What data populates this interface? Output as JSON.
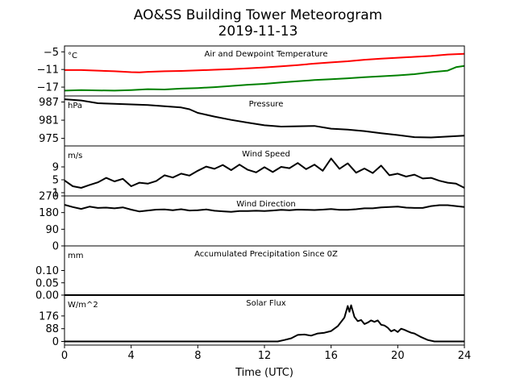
{
  "title_line1": "AO&SS Building Tower Meteorogram",
  "title_line2": "2019-11-13",
  "xlabel": "Time (UTC)",
  "x_ticks": [
    "0",
    "4",
    "8",
    "12",
    "16",
    "20",
    "24"
  ],
  "colors": {
    "temperature": "#ff0000",
    "dewpoint": "#008000",
    "default": "#000000"
  },
  "chart_data": [
    {
      "type": "line",
      "title": "Air and Dewpoint Temperature",
      "unit": "°C",
      "xlim": [
        0,
        24
      ],
      "ylim": [
        -20,
        -3
      ],
      "y_ticks": [
        {
          "v": -5,
          "label": "−5"
        },
        {
          "v": -11,
          "label": "−11"
        },
        {
          "v": -17,
          "label": "−17"
        }
      ],
      "series": [
        {
          "color": "#ff0000",
          "x": [
            0,
            1,
            2,
            3,
            4,
            4.5,
            5,
            6,
            7,
            8,
            9,
            10,
            11,
            12,
            13,
            14,
            15,
            16,
            17,
            18,
            19,
            20,
            21,
            22,
            23,
            24
          ],
          "y": [
            -11.2,
            -11.2,
            -11.4,
            -11.6,
            -11.9,
            -12.0,
            -11.8,
            -11.6,
            -11.5,
            -11.3,
            -11.1,
            -10.9,
            -10.6,
            -10.3,
            -9.9,
            -9.5,
            -9.0,
            -8.6,
            -8.2,
            -7.7,
            -7.3,
            -7.0,
            -6.7,
            -6.4,
            -5.9,
            -5.7
          ]
        },
        {
          "color": "#008000",
          "x": [
            0,
            1,
            2,
            3,
            4,
            5,
            6,
            7,
            8,
            9,
            10,
            11,
            12,
            13,
            14,
            15,
            16,
            17,
            18,
            19,
            20,
            21,
            22,
            23,
            23.5,
            24
          ],
          "y": [
            -18.2,
            -18.0,
            -18.1,
            -18.2,
            -18.0,
            -17.7,
            -17.8,
            -17.5,
            -17.3,
            -17.0,
            -16.6,
            -16.2,
            -15.9,
            -15.4,
            -15.0,
            -14.6,
            -14.3,
            -14.0,
            -13.6,
            -13.3,
            -13.0,
            -12.6,
            -11.9,
            -11.4,
            -10.2,
            -9.8
          ]
        }
      ]
    },
    {
      "type": "line",
      "title": "Pressure",
      "unit": "hPa",
      "xlim": [
        0,
        24
      ],
      "ylim": [
        972.5,
        989
      ],
      "y_ticks": [
        {
          "v": 987,
          "label": "987"
        },
        {
          "v": 981,
          "label": "981"
        },
        {
          "v": 975,
          "label": "975"
        }
      ],
      "series": [
        {
          "color": "#000000",
          "x": [
            0,
            1,
            2,
            3,
            4,
            5,
            6,
            7,
            7.5,
            8,
            9,
            10,
            11,
            12,
            13,
            14,
            15,
            16,
            17,
            18,
            19,
            20,
            21,
            22,
            23,
            24
          ],
          "y": [
            987.9,
            987.5,
            986.6,
            986.4,
            986.2,
            986.0,
            985.6,
            985.2,
            984.6,
            983.4,
            982.2,
            981.1,
            980.2,
            979.3,
            978.9,
            979.0,
            979.1,
            978.2,
            977.9,
            977.4,
            976.7,
            976.1,
            975.4,
            975.3,
            975.6,
            975.9
          ]
        }
      ]
    },
    {
      "type": "line",
      "title": "Wind Speed",
      "unit": "m/s",
      "xlim": [
        0,
        24
      ],
      "ylim": [
        0,
        15.5
      ],
      "y_ticks": [
        {
          "v": 9,
          "label": "9"
        },
        {
          "v": 5,
          "label": "5"
        },
        {
          "v": 1,
          "label": "1"
        }
      ],
      "series": [
        {
          "color": "#000000",
          "x": [
            0,
            0.5,
            1,
            1.5,
            2,
            2.5,
            3,
            3.5,
            4,
            4.5,
            5,
            5.5,
            6,
            6.5,
            7,
            7.5,
            8,
            8.5,
            9,
            9.5,
            10,
            10.5,
            11,
            11.5,
            12,
            12.5,
            13,
            13.5,
            14,
            14.5,
            15,
            15.5,
            16,
            16.5,
            17,
            17.5,
            18,
            18.5,
            19,
            19.5,
            20,
            20.5,
            21,
            21.5,
            22,
            22.5,
            23,
            23.5,
            24
          ],
          "y": [
            4.8,
            3.0,
            2.5,
            3.4,
            4.2,
            5.6,
            4.5,
            5.3,
            3.0,
            4.1,
            3.8,
            4.6,
            6.4,
            5.7,
            6.9,
            6.3,
            7.8,
            9.1,
            8.4,
            9.6,
            8.0,
            9.7,
            8.1,
            7.3,
            8.9,
            7.4,
            9.0,
            8.6,
            10.2,
            8.3,
            9.7,
            7.8,
            11.6,
            8.4,
            10.1,
            7.2,
            8.5,
            7.1,
            9.4,
            6.4,
            6.9,
            6.0,
            6.6,
            5.4,
            5.6,
            4.7,
            4.1,
            3.8,
            2.5
          ]
        }
      ]
    },
    {
      "type": "line",
      "title": "Wind Direction",
      "unit": "",
      "xlim": [
        0,
        24
      ],
      "ylim": [
        0,
        270
      ],
      "y_ticks": [
        {
          "v": 270,
          "label": "270"
        },
        {
          "v": 180,
          "label": "180"
        },
        {
          "v": 90,
          "label": "90"
        },
        {
          "v": 0,
          "label": "0"
        }
      ],
      "series": [
        {
          "color": "#000000",
          "x": [
            0,
            0.5,
            1,
            1.5,
            2,
            2.5,
            3,
            3.5,
            4,
            4.5,
            5,
            5.5,
            6,
            6.5,
            7,
            7.5,
            8,
            8.5,
            9,
            9.5,
            10,
            10.5,
            11,
            11.5,
            12,
            12.5,
            13,
            13.5,
            14,
            14.5,
            15,
            15.5,
            16,
            16.5,
            17,
            17.5,
            18,
            18.5,
            19,
            19.5,
            20,
            20.5,
            21,
            21.5,
            22,
            22.5,
            23,
            23.5,
            24
          ],
          "y": [
            222,
            210,
            200,
            212,
            205,
            207,
            203,
            208,
            196,
            186,
            191,
            196,
            197,
            193,
            198,
            191,
            193,
            197,
            190,
            187,
            184,
            188,
            188,
            190,
            188,
            191,
            195,
            193,
            196,
            195,
            194,
            196,
            199,
            195,
            195,
            198,
            203,
            203,
            208,
            210,
            212,
            207,
            205,
            205,
            215,
            220,
            220,
            215,
            210
          ]
        }
      ]
    },
    {
      "type": "line",
      "title": "Accumulated Precipitation Since 0Z",
      "unit": "mm",
      "xlim": [
        0,
        24
      ],
      "ylim": [
        0,
        0.2
      ],
      "y_ticks": [
        {
          "v": 0.1,
          "label": "0.10"
        },
        {
          "v": 0.05,
          "label": "0.05"
        },
        {
          "v": 0,
          "label": "0.00"
        }
      ],
      "series": [
        {
          "color": "#000000",
          "x": [
            0,
            24
          ],
          "y": [
            0,
            0
          ]
        }
      ]
    },
    {
      "type": "line",
      "title": "Solar Flux",
      "unit": "W/m^2",
      "xlim": [
        0,
        24
      ],
      "ylim": [
        -25,
        320
      ],
      "y_ticks": [
        {
          "v": 176,
          "label": "176"
        },
        {
          "v": 88,
          "label": "88"
        },
        {
          "v": 0,
          "label": "0"
        }
      ],
      "series": [
        {
          "color": "#000000",
          "x": [
            0,
            12.8,
            13.2,
            13.6,
            14,
            14.4,
            14.8,
            15.2,
            15.6,
            16,
            16.4,
            16.8,
            17,
            17.1,
            17.2,
            17.4,
            17.6,
            17.8,
            18,
            18.2,
            18.4,
            18.6,
            18.8,
            19,
            19.2,
            19.4,
            19.6,
            19.8,
            20,
            20.2,
            20.4,
            20.6,
            20.8,
            21,
            21.4,
            21.8,
            22.2,
            24
          ],
          "y": [
            0,
            0,
            10,
            22,
            45,
            48,
            40,
            55,
            60,
            72,
            105,
            165,
            245,
            205,
            250,
            170,
            140,
            148,
            120,
            130,
            145,
            135,
            145,
            115,
            110,
            95,
            70,
            80,
            65,
            88,
            80,
            70,
            60,
            55,
            30,
            10,
            0,
            0
          ]
        }
      ]
    }
  ]
}
